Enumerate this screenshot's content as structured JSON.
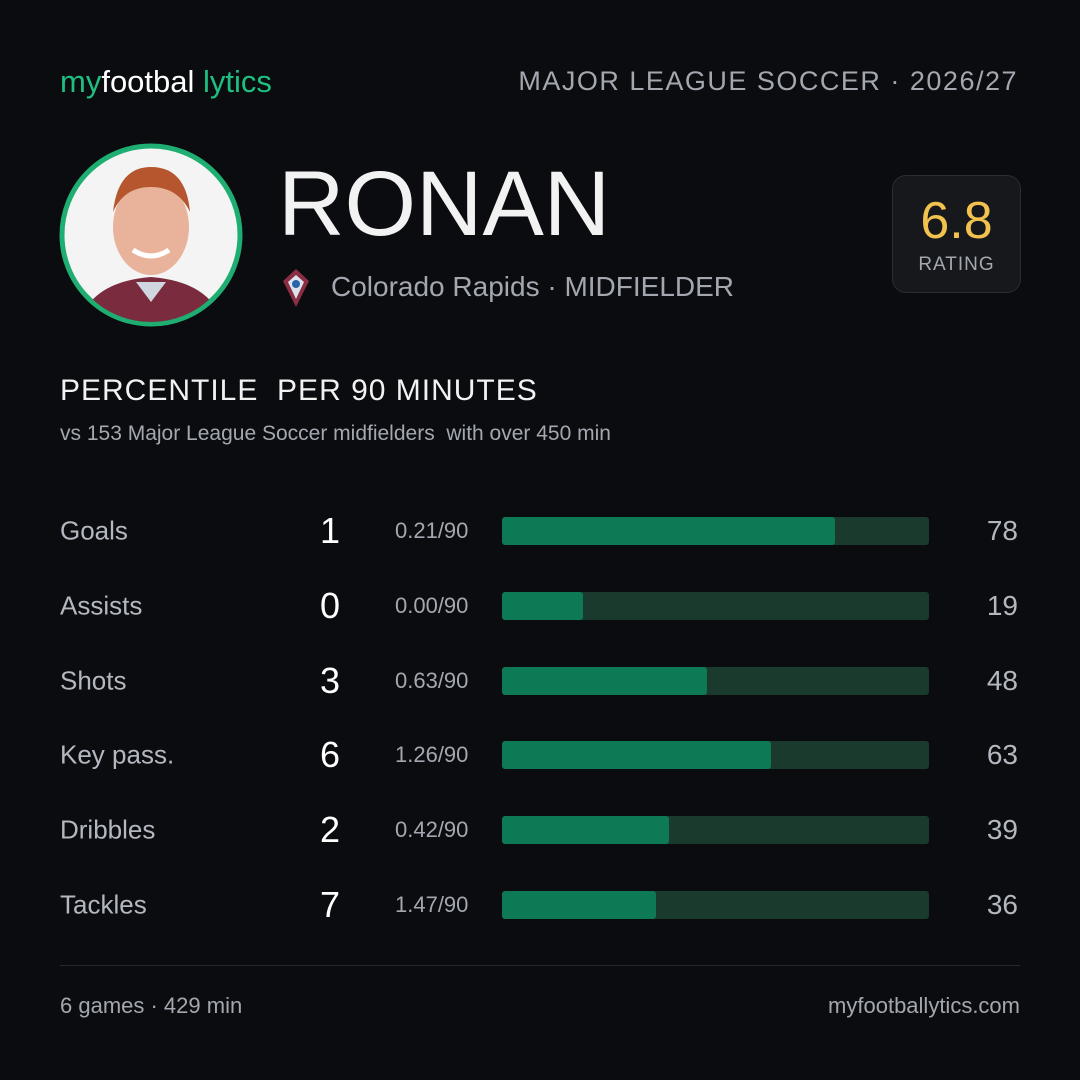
{
  "header": {
    "logo": [
      "my",
      "footbal",
      "lytics"
    ],
    "league": "MAJOR LEAGUE SOCCER · 2026/27"
  },
  "player": {
    "name": "RONAN",
    "team": "Colorado Rapids · MIDFIELDER",
    "rating": 6.8,
    "rating_label": "RATING"
  },
  "section": {
    "title": "PERCENTILE  PER 90 MINUTES",
    "subtitle": "vs 153 Major League Soccer midfielders  with over 450 min"
  },
  "stats": {
    "scale": [
      0,
      100
    ],
    "colors": {
      "track": "#1b3a2e",
      "fill": "#0e7a55"
    },
    "rows": [
      {
        "label": "Goals",
        "count": 1,
        "per90": "0.21/90",
        "percentile": 78
      },
      {
        "label": "Assists",
        "count": 0,
        "per90": "0.00/90",
        "percentile": 19
      },
      {
        "label": "Shots",
        "count": 3,
        "per90": "0.63/90",
        "percentile": 48
      },
      {
        "label": "Key pass.",
        "count": 6,
        "per90": "1.26/90",
        "percentile": 63
      },
      {
        "label": "Dribbles",
        "count": 2,
        "per90": "0.42/90",
        "percentile": 39
      },
      {
        "label": "Tackles",
        "count": 7,
        "per90": "1.47/90",
        "percentile": 36
      }
    ]
  },
  "footer": {
    "summary": "6 games · 429 min",
    "site": "myfootballytics.com"
  }
}
